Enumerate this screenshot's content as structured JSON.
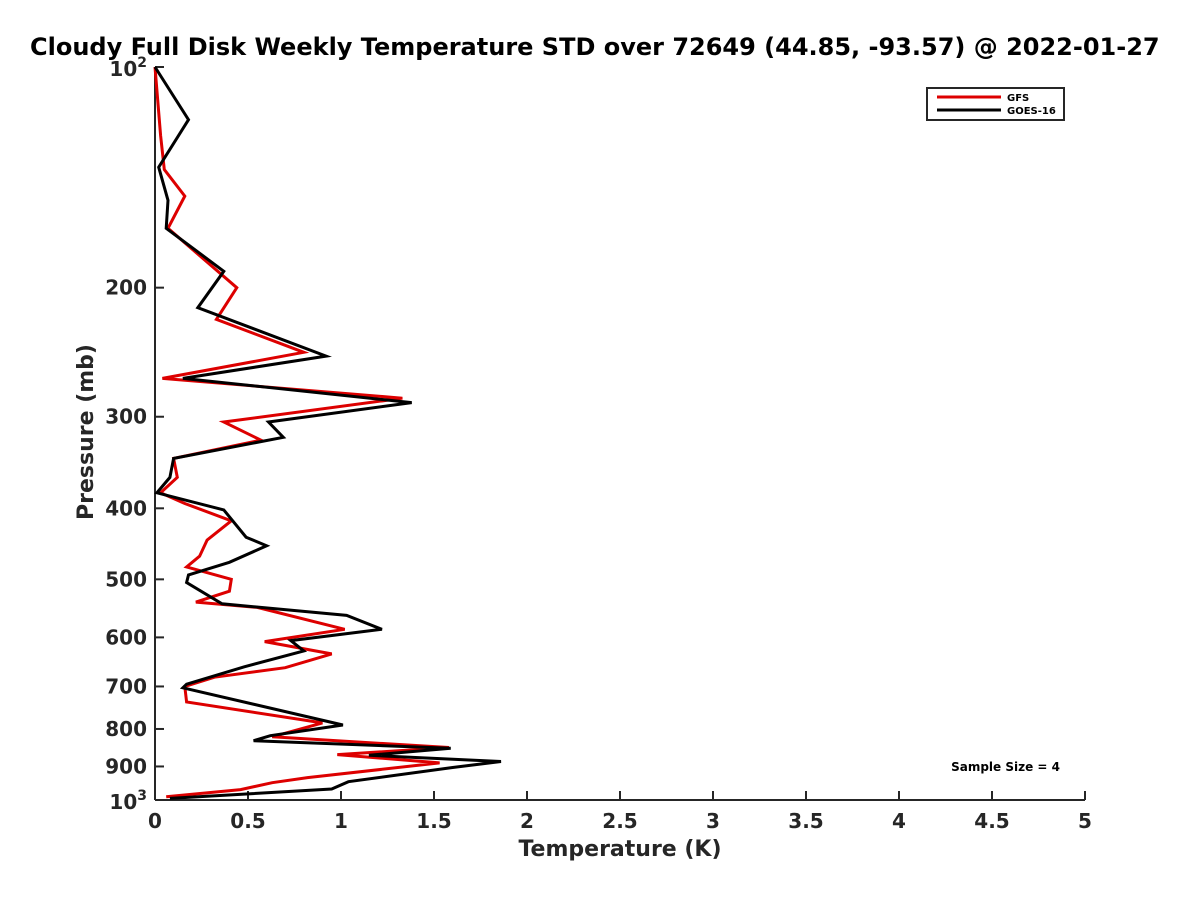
{
  "chart_data": {
    "type": "line",
    "title": "Cloudy Full Disk Weekly Temperature STD over 72649 (44.85, -93.57) @ 2022-01-27",
    "xlabel": "Temperature (K)",
    "ylabel": "Pressure (mb)",
    "xlim": [
      0,
      5
    ],
    "ylim": [
      1000,
      100
    ],
    "y_scale": "log",
    "grid": false,
    "legend_position": "top-right",
    "x_ticks": [
      {
        "value": 0,
        "label": "0"
      },
      {
        "value": 0.5,
        "label": "0.5"
      },
      {
        "value": 1,
        "label": "1"
      },
      {
        "value": 1.5,
        "label": "1.5"
      },
      {
        "value": 2,
        "label": "2"
      },
      {
        "value": 2.5,
        "label": "2.5"
      },
      {
        "value": 3,
        "label": "3"
      },
      {
        "value": 3.5,
        "label": "3.5"
      },
      {
        "value": 4,
        "label": "4"
      },
      {
        "value": 4.5,
        "label": "4.5"
      },
      {
        "value": 5,
        "label": "5"
      }
    ],
    "y_ticks": [
      {
        "value": 200,
        "label": "200"
      },
      {
        "value": 300,
        "label": "300"
      },
      {
        "value": 400,
        "label": "400"
      },
      {
        "value": 500,
        "label": "500"
      },
      {
        "value": 600,
        "label": "600"
      },
      {
        "value": 700,
        "label": "700"
      },
      {
        "value": 800,
        "label": "800"
      },
      {
        "value": 900,
        "label": "900"
      }
    ],
    "y_power_ticks": [
      {
        "value": 100,
        "base": "10",
        "exp": "2"
      },
      {
        "value": 1000,
        "base": "10",
        "exp": "3"
      }
    ],
    "annotation": "Sample Size = 4",
    "series": [
      {
        "name": "GFS",
        "color": "#dd0000",
        "points": [
          [
            0.0,
            100
          ],
          [
            0.03,
            124
          ],
          [
            0.05,
            138
          ],
          [
            0.16,
            150
          ],
          [
            0.07,
            166
          ],
          [
            0.44,
            200
          ],
          [
            0.33,
            221
          ],
          [
            0.8,
            245
          ],
          [
            0.04,
            266
          ],
          [
            1.33,
            283
          ],
          [
            0.37,
            305
          ],
          [
            0.57,
            323
          ],
          [
            0.1,
            342
          ],
          [
            0.12,
            363
          ],
          [
            0.03,
            381
          ],
          [
            0.16,
            394
          ],
          [
            0.41,
            416
          ],
          [
            0.28,
            442
          ],
          [
            0.24,
            465
          ],
          [
            0.17,
            481
          ],
          [
            0.41,
            500
          ],
          [
            0.4,
            519
          ],
          [
            0.22,
            537
          ],
          [
            0.55,
            546
          ],
          [
            1.02,
            585
          ],
          [
            0.59,
            608
          ],
          [
            0.95,
            632
          ],
          [
            0.7,
            660
          ],
          [
            0.32,
            680
          ],
          [
            0.16,
            700
          ],
          [
            0.17,
            735
          ],
          [
            0.9,
            785
          ],
          [
            0.63,
            820
          ],
          [
            1.58,
            848
          ],
          [
            0.98,
            867
          ],
          [
            1.53,
            890
          ],
          [
            0.82,
            932
          ],
          [
            0.63,
            947
          ],
          [
            0.46,
            968
          ],
          [
            0.06,
            990
          ]
        ]
      },
      {
        "name": "GOES-16",
        "color": "#000000",
        "points": [
          [
            0.0,
            100
          ],
          [
            0.18,
            118
          ],
          [
            0.02,
            137
          ],
          [
            0.07,
            152
          ],
          [
            0.06,
            166
          ],
          [
            0.37,
            190
          ],
          [
            0.23,
            213
          ],
          [
            0.92,
            248
          ],
          [
            0.15,
            266
          ],
          [
            1.38,
            287
          ],
          [
            0.61,
            305
          ],
          [
            0.69,
            320
          ],
          [
            0.1,
            342
          ],
          [
            0.08,
            363
          ],
          [
            0.01,
            381
          ],
          [
            0.37,
            402
          ],
          [
            0.49,
            438
          ],
          [
            0.6,
            450
          ],
          [
            0.4,
            474
          ],
          [
            0.18,
            493
          ],
          [
            0.17,
            505
          ],
          [
            0.36,
            540
          ],
          [
            1.03,
            560
          ],
          [
            1.22,
            585
          ],
          [
            0.73,
            606
          ],
          [
            0.8,
            626
          ],
          [
            0.48,
            658
          ],
          [
            0.17,
            695
          ],
          [
            0.15,
            703
          ],
          [
            1.01,
            790
          ],
          [
            0.62,
            817
          ],
          [
            0.53,
            830
          ],
          [
            1.59,
            850
          ],
          [
            1.15,
            869
          ],
          [
            1.86,
            886
          ],
          [
            1.6,
            903
          ],
          [
            1.04,
            944
          ],
          [
            0.95,
            966
          ],
          [
            0.08,
            995
          ]
        ]
      }
    ]
  }
}
